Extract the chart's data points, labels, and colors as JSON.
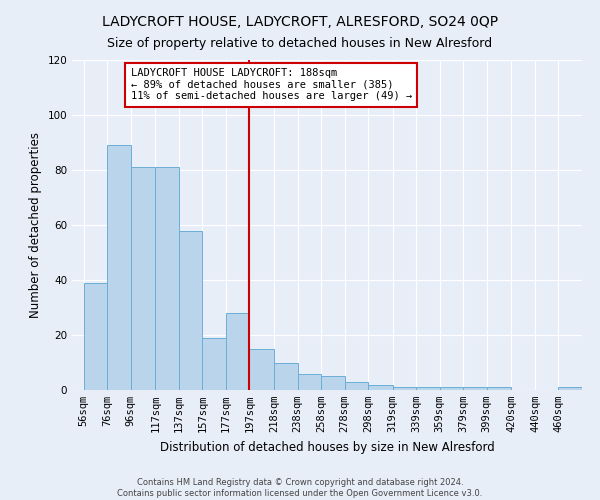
{
  "title": "LADYCROFT HOUSE, LADYCROFT, ALRESFORD, SO24 0QP",
  "subtitle": "Size of property relative to detached houses in New Alresford",
  "xlabel": "Distribution of detached houses by size in New Alresford",
  "ylabel": "Number of detached properties",
  "footer_line1": "Contains HM Land Registry data © Crown copyright and database right 2024.",
  "footer_line2": "Contains public sector information licensed under the Open Government Licence v3.0.",
  "bin_edges": [
    56,
    76,
    96,
    117,
    137,
    157,
    177,
    197,
    218,
    238,
    258,
    278,
    298,
    319,
    339,
    359,
    379,
    399,
    420,
    440,
    460,
    480
  ],
  "counts": [
    39,
    89,
    81,
    81,
    58,
    19,
    28,
    15,
    10,
    6,
    5,
    3,
    2,
    1,
    1,
    1,
    1,
    1,
    0,
    0,
    1
  ],
  "tick_labels": [
    "56sqm",
    "76sqm",
    "96sqm",
    "117sqm",
    "137sqm",
    "157sqm",
    "177sqm",
    "197sqm",
    "218sqm",
    "238sqm",
    "258sqm",
    "278sqm",
    "298sqm",
    "319sqm",
    "339sqm",
    "359sqm",
    "379sqm",
    "399sqm",
    "420sqm",
    "440sqm",
    "460sqm"
  ],
  "bar_color": "#bad4eb",
  "bar_edge_color": "#6aaed6",
  "vline_x": 197,
  "vline_color": "#cc0000",
  "annotation_title": "LADYCROFT HOUSE LADYCROFT: 188sqm",
  "annotation_line2": "← 89% of detached houses are smaller (385)",
  "annotation_line3": "11% of semi-detached houses are larger (49) →",
  "annotation_box_color": "#ffffff",
  "annotation_border_color": "#cc0000",
  "ylim": [
    0,
    120
  ],
  "yticks": [
    0,
    20,
    40,
    60,
    80,
    100,
    120
  ],
  "background_color": "#e8eef8",
  "grid_color": "#ffffff",
  "title_fontsize": 10,
  "subtitle_fontsize": 9,
  "axis_label_fontsize": 8.5,
  "tick_fontsize": 7.5,
  "footer_fontsize": 6
}
